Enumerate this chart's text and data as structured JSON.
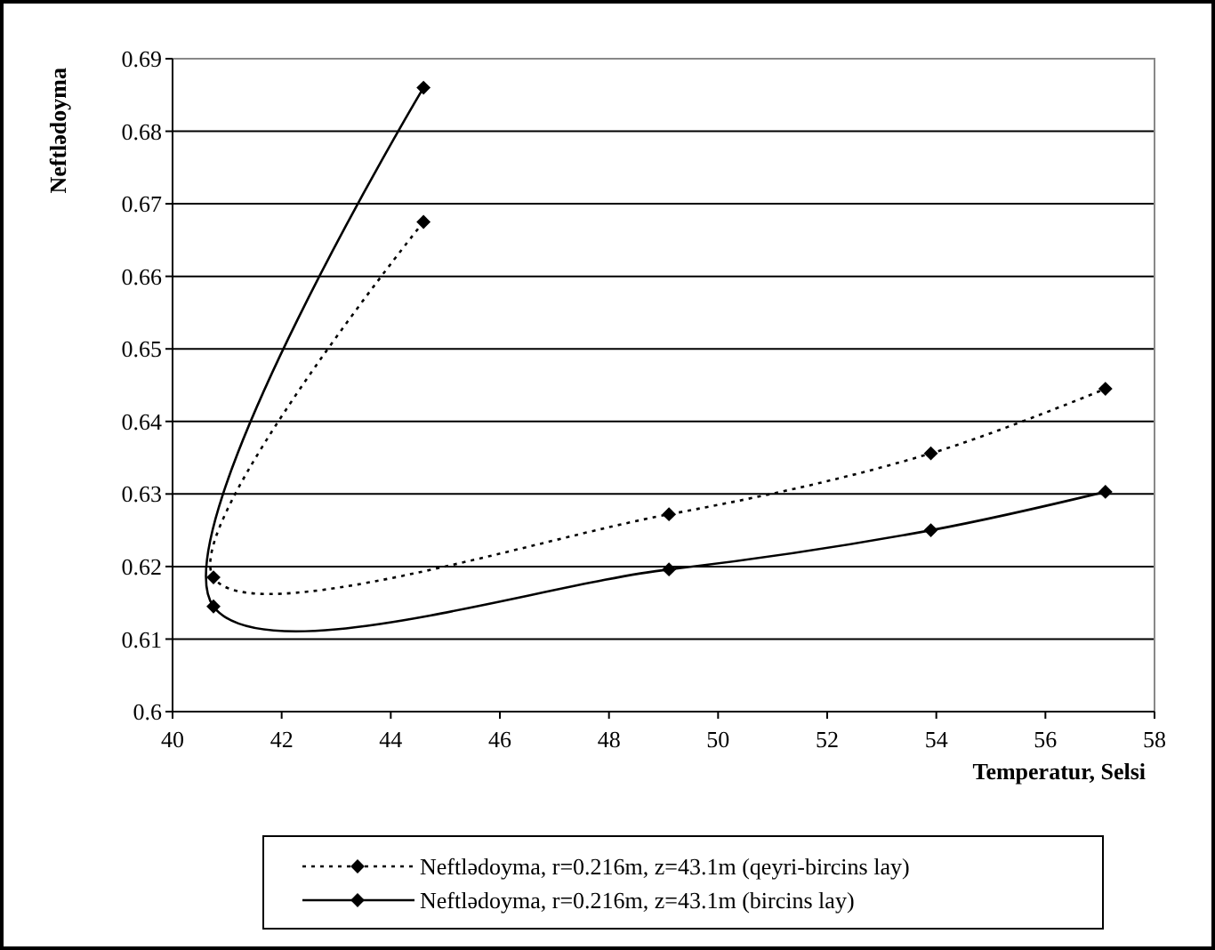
{
  "chart_data": {
    "type": "line",
    "xlabel": "Temperatur, Selsi",
    "ylabel": "Neftlədoyma",
    "xlim": [
      40,
      58
    ],
    "xticks": [
      40,
      42,
      44,
      46,
      48,
      50,
      52,
      54,
      56,
      58
    ],
    "ylim": [
      0.6,
      0.69
    ],
    "yticks": [
      {
        "value": 0.6,
        "label": "0.6"
      },
      0.61,
      0.62,
      0.63,
      0.64,
      0.65,
      0.66,
      0.67,
      0.68,
      0.69
    ],
    "grid": "y",
    "legend": "bottom",
    "marker": "diamond",
    "series": [
      {
        "name": "Neftlədoyma, r=0.216m, z=43.1m (qeyri-bircins lay)",
        "color": "#000000",
        "line_style": "dotted",
        "x": [
          44.6,
          40.75,
          49.1,
          53.9,
          57.1
        ],
        "values": [
          0.6675,
          0.6185,
          0.6272,
          0.6356,
          0.6445
        ]
      },
      {
        "name": "Neftlədoyma, r=0.216m, z=43.1m (bircins lay)",
        "color": "#000000",
        "line_style": "solid",
        "x": [
          44.6,
          40.75,
          49.1,
          53.9,
          57.1
        ],
        "values": [
          0.686,
          0.6145,
          0.6196,
          0.625,
          0.6303
        ]
      }
    ]
  }
}
